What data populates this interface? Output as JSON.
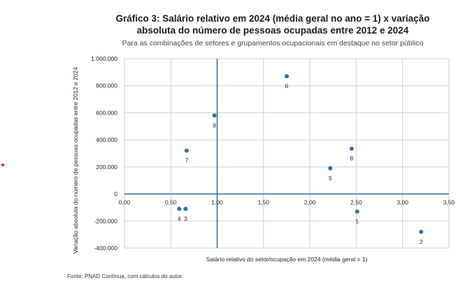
{
  "chart_data": {
    "type": "scatter",
    "title_line1": "Gráfico 3: Salário relativo em 2024 (média geral no ano = 1) x variação",
    "title_line2": "absoluta do número de pessoas ocupadas entre 2012 e 2024",
    "subtitle": "Para as combinações de setores e grupamentos ocupacionais em destaque no setor público",
    "xlabel": "Salário relativo do setor/ocupação em 2024 (média geral = 1)",
    "ylabel": "Variação absoluta do número de pessoas ocupadas entre 2012 e 2024",
    "xlim": [
      0,
      3.5
    ],
    "ylim": [
      -400000,
      1000000
    ],
    "x_ticks": [
      0,
      0.5,
      1,
      1.5,
      2,
      2.5,
      3,
      3.5
    ],
    "x_tick_labels": [
      "0,00",
      "0,50",
      "1,00",
      "1,50",
      "2,00",
      "2,50",
      "3,00",
      "3,50"
    ],
    "y_ticks": [
      -400000,
      -200000,
      0,
      200000,
      400000,
      600000,
      800000,
      1000000
    ],
    "y_tick_labels": [
      "-400.000",
      "-200.000",
      "0",
      "200.000",
      "400.000",
      "600.000",
      "800.000",
      "1.000.000"
    ],
    "vertical_reference_x": 1,
    "horizontal_reference_y": 0,
    "grid": true,
    "marker_color": "#2e75a8",
    "reference_line_color": "#2e75a8",
    "points": [
      {
        "label": "1",
        "x": 2.51,
        "y": -130000
      },
      {
        "label": "2",
        "x": 3.2,
        "y": -280000
      },
      {
        "label": "3",
        "x": 0.66,
        "y": -110000
      },
      {
        "label": "4",
        "x": 0.59,
        "y": -110000
      },
      {
        "label": "5",
        "x": 2.22,
        "y": 190000
      },
      {
        "label": "6",
        "x": 1.75,
        "y": 870000
      },
      {
        "label": "7",
        "x": 0.67,
        "y": 320000
      },
      {
        "label": "8",
        "x": 2.45,
        "y": 335000
      },
      {
        "label": "9",
        "x": 0.97,
        "y": 580000
      }
    ]
  },
  "source": "Fonte: PNAD Contínua, com cálculos do autor."
}
